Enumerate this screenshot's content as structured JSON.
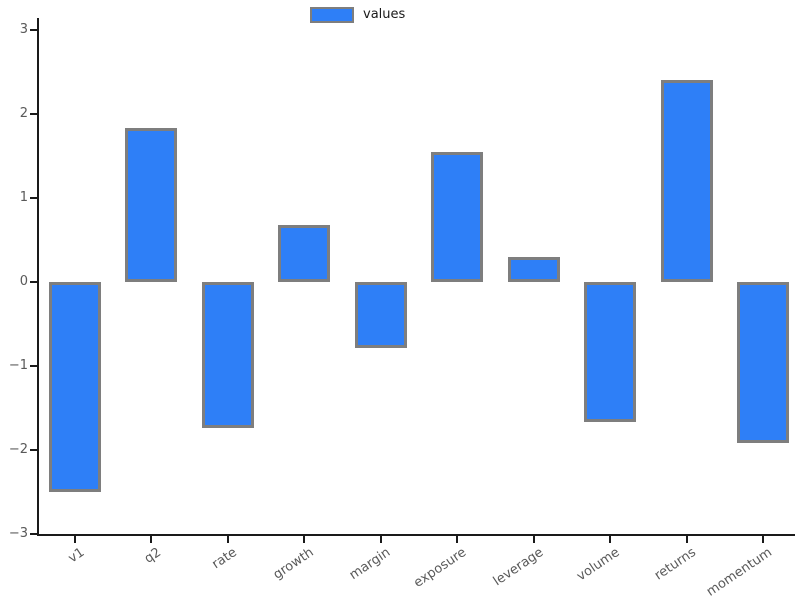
{
  "figure": {
    "background": "#ffffff"
  },
  "chart_data": {
    "type": "bar",
    "title": "",
    "xlabel": "",
    "ylabel": "",
    "legend": "values",
    "legend_position": "top-center",
    "categories": [
      "v1",
      "q2",
      "rate",
      "growth",
      "margin",
      "exposure",
      "leverage",
      "volume",
      "returns",
      "momentum"
    ],
    "values": [
      -2.5,
      1.83,
      -1.74,
      0.68,
      -0.79,
      1.55,
      0.3,
      -1.67,
      2.4,
      -1.92
    ],
    "yticks": [
      3,
      2,
      1,
      0,
      -1,
      -2,
      -3
    ],
    "ylim": [
      -3.0,
      3.1
    ],
    "grid": false,
    "x_label_rotation_deg": 34,
    "bar_color": "#2E7FF7",
    "bar_edge_color": "#7E7E7E",
    "tick_label_color": "#595959",
    "axis_color": "#1a1a1a"
  }
}
